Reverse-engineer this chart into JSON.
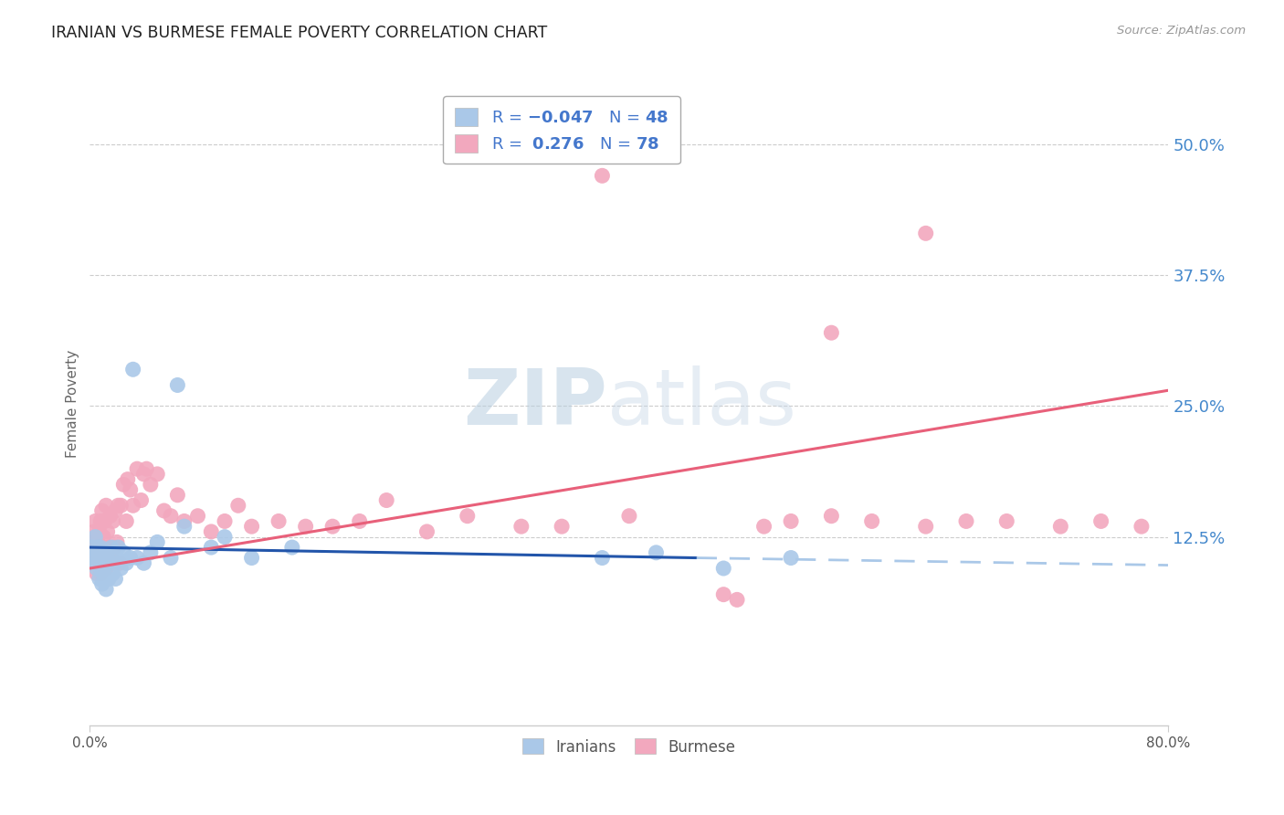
{
  "title": "IRANIAN VS BURMESE FEMALE POVERTY CORRELATION CHART",
  "source": "Source: ZipAtlas.com",
  "ylabel": "Female Poverty",
  "xlim": [
    0.0,
    0.8
  ],
  "ylim": [
    -0.055,
    0.56
  ],
  "watermark_zip": "ZIP",
  "watermark_atlas": "atlas",
  "legend_iranians": "Iranians",
  "legend_burmese": "Burmese",
  "R_iranians": -0.047,
  "N_iranians": 48,
  "R_burmese": 0.276,
  "N_burmese": 78,
  "color_iranians": "#aac8e8",
  "color_burmese": "#f2a8be",
  "line_color_iranians_solid": "#2255aa",
  "line_color_iranians_dash": "#aac8e8",
  "line_color_burmese": "#e8607a",
  "background_color": "#ffffff",
  "grid_color": "#cccccc",
  "ytick_color": "#4488cc",
  "iranians_x": [
    0.002,
    0.003,
    0.004,
    0.004,
    0.005,
    0.005,
    0.006,
    0.006,
    0.007,
    0.007,
    0.008,
    0.008,
    0.009,
    0.009,
    0.01,
    0.01,
    0.011,
    0.012,
    0.012,
    0.013,
    0.014,
    0.015,
    0.016,
    0.017,
    0.018,
    0.019,
    0.02,
    0.021,
    0.023,
    0.025,
    0.027,
    0.03,
    0.032,
    0.035,
    0.04,
    0.045,
    0.05,
    0.06,
    0.065,
    0.07,
    0.09,
    0.1,
    0.12,
    0.15,
    0.38,
    0.42,
    0.47,
    0.52
  ],
  "iranians_y": [
    0.115,
    0.105,
    0.1,
    0.125,
    0.11,
    0.095,
    0.115,
    0.1,
    0.105,
    0.085,
    0.115,
    0.095,
    0.105,
    0.08,
    0.11,
    0.09,
    0.105,
    0.1,
    0.075,
    0.11,
    0.085,
    0.1,
    0.115,
    0.09,
    0.1,
    0.085,
    0.105,
    0.115,
    0.095,
    0.11,
    0.1,
    0.105,
    0.285,
    0.105,
    0.1,
    0.11,
    0.12,
    0.105,
    0.27,
    0.135,
    0.115,
    0.125,
    0.105,
    0.115,
    0.105,
    0.11,
    0.095,
    0.105
  ],
  "burmese_x": [
    0.001,
    0.002,
    0.003,
    0.003,
    0.004,
    0.004,
    0.005,
    0.005,
    0.006,
    0.006,
    0.007,
    0.007,
    0.008,
    0.008,
    0.009,
    0.009,
    0.01,
    0.01,
    0.011,
    0.011,
    0.012,
    0.012,
    0.013,
    0.014,
    0.015,
    0.016,
    0.017,
    0.018,
    0.019,
    0.02,
    0.021,
    0.022,
    0.023,
    0.025,
    0.027,
    0.028,
    0.03,
    0.032,
    0.035,
    0.038,
    0.04,
    0.042,
    0.045,
    0.05,
    0.055,
    0.06,
    0.065,
    0.07,
    0.08,
    0.09,
    0.1,
    0.11,
    0.12,
    0.14,
    0.16,
    0.18,
    0.2,
    0.22,
    0.25,
    0.28,
    0.32,
    0.35,
    0.38,
    0.4,
    0.5,
    0.52,
    0.55,
    0.58,
    0.62,
    0.65,
    0.68,
    0.72,
    0.75,
    0.78,
    0.55,
    0.62,
    0.47,
    0.48
  ],
  "burmese_y": [
    0.115,
    0.12,
    0.105,
    0.13,
    0.1,
    0.14,
    0.115,
    0.09,
    0.12,
    0.1,
    0.13,
    0.11,
    0.14,
    0.09,
    0.15,
    0.1,
    0.125,
    0.095,
    0.14,
    0.105,
    0.155,
    0.095,
    0.13,
    0.115,
    0.145,
    0.105,
    0.14,
    0.115,
    0.15,
    0.12,
    0.155,
    0.1,
    0.155,
    0.175,
    0.14,
    0.18,
    0.17,
    0.155,
    0.19,
    0.16,
    0.185,
    0.19,
    0.175,
    0.185,
    0.15,
    0.145,
    0.165,
    0.14,
    0.145,
    0.13,
    0.14,
    0.155,
    0.135,
    0.14,
    0.135,
    0.135,
    0.14,
    0.16,
    0.13,
    0.145,
    0.135,
    0.135,
    0.47,
    0.145,
    0.135,
    0.14,
    0.145,
    0.14,
    0.135,
    0.14,
    0.14,
    0.135,
    0.14,
    0.135,
    0.32,
    0.415,
    0.07,
    0.065
  ]
}
